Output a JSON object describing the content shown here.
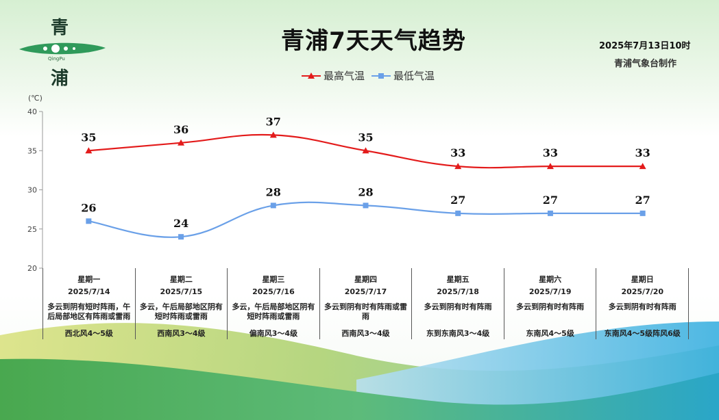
{
  "header": {
    "title": "青浦7天天气趋势",
    "date": "2025年7月13日10时",
    "maker": "青浦气象台制作"
  },
  "logo": {
    "char_top": "青",
    "char_bottom": "浦",
    "roman": "QingPu"
  },
  "legend": {
    "high_label": "最高气温",
    "low_label": "最低气温"
  },
  "colors": {
    "high": "#e31b1b",
    "low": "#6aa0e8",
    "axis": "#999999"
  },
  "chart_data": {
    "type": "line",
    "unit": "(℃)",
    "ylim": [
      20,
      40
    ],
    "yticks": [
      "20",
      "25",
      "30",
      "35",
      "40"
    ],
    "categories": [
      "2025/7/14",
      "2025/7/15",
      "2025/7/16",
      "2025/7/17",
      "2025/7/18",
      "2025/7/19",
      "2025/7/20"
    ],
    "series": [
      {
        "name": "最高气温",
        "values": [
          35,
          36,
          37,
          35,
          33,
          33,
          33
        ]
      },
      {
        "name": "最低气温",
        "values": [
          26,
          24,
          28,
          28,
          27,
          27,
          27
        ]
      }
    ]
  },
  "forecast": [
    {
      "weekday": "星期一",
      "date": "2025/7/14",
      "condition": "多云到阴有短时阵雨，午后局部地区有阵雨或雷雨",
      "wind": "西北风4～5级"
    },
    {
      "weekday": "星期二",
      "date": "2025/7/15",
      "condition": "多云，午后局部地区阴有短时阵雨或雷雨",
      "wind": "西南风3～4级"
    },
    {
      "weekday": "星期三",
      "date": "2025/7/16",
      "condition": "多云，午后局部地区阴有短时阵雨或雷雨",
      "wind": "偏南风3～4级"
    },
    {
      "weekday": "星期四",
      "date": "2025/7/17",
      "condition": "多云到阴有时有阵雨或雷雨",
      "wind": "西南风3～4级"
    },
    {
      "weekday": "星期五",
      "date": "2025/7/18",
      "condition": "多云到阴有时有阵雨",
      "wind": "东到东南风3～4级"
    },
    {
      "weekday": "星期六",
      "date": "2025/7/19",
      "condition": "多云到阴有时有阵雨",
      "wind": "东南风4～5级"
    },
    {
      "weekday": "星期日",
      "date": "2025/7/20",
      "condition": "多云到阴有时有阵雨",
      "wind": "东南风4～5级阵风6级"
    }
  ]
}
